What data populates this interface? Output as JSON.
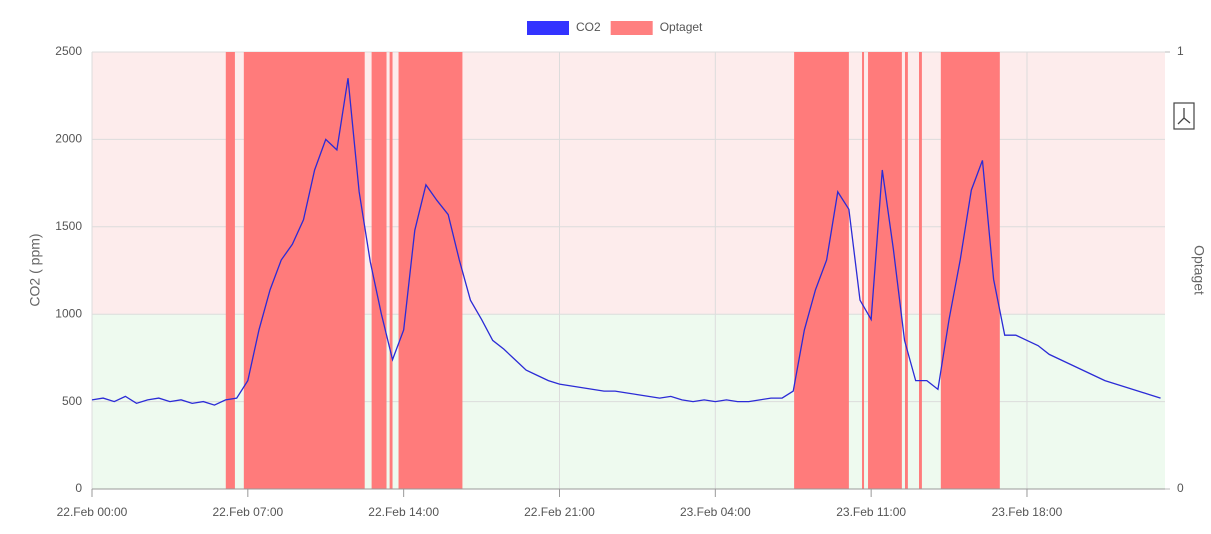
{
  "chart_data": {
    "type": "line",
    "y_label": "CO2 ( ppm)",
    "y2_label": "Optaget",
    "xlim": [
      0,
      48.2
    ],
    "xticks": [
      {
        "value": 0,
        "label": "22.Feb 00:00"
      },
      {
        "value": 7,
        "label": "22.Feb 07:00"
      },
      {
        "value": 14,
        "label": "22.Feb 14:00"
      },
      {
        "value": 21,
        "label": "22.Feb 21:00"
      },
      {
        "value": 28,
        "label": "23.Feb 04:00"
      },
      {
        "value": 35,
        "label": "23.Feb 11:00"
      },
      {
        "value": 42,
        "label": "23.Feb 18:00"
      }
    ],
    "ylim": [
      0,
      2500
    ],
    "yticks": [
      0,
      500,
      1000,
      1500,
      2000,
      2500
    ],
    "y2lim": [
      0,
      1
    ],
    "y2ticks": [
      0,
      1
    ],
    "grid": true,
    "legend": "top",
    "plot_bands": [
      {
        "from": 1000,
        "to": 2500,
        "color": "#fdecec"
      },
      {
        "from": 0,
        "to": 1000,
        "color": "#eefaef"
      }
    ],
    "series": [
      {
        "name": "CO2",
        "color": "#2b2bd6",
        "legend_color": "#3333ff",
        "x": [
          0,
          0.5,
          1,
          1.5,
          2,
          2.5,
          3,
          3.5,
          4,
          4.5,
          5,
          5.5,
          6,
          6.5,
          7,
          7.5,
          8,
          8.5,
          9,
          9.5,
          10,
          10.5,
          11,
          11.5,
          12,
          12.5,
          13,
          13.5,
          14,
          14.5,
          15,
          15.5,
          16,
          16.5,
          17,
          17.5,
          18,
          18.5,
          19,
          19.5,
          20,
          20.5,
          21,
          21.5,
          22,
          22.5,
          23,
          23.5,
          24,
          24.5,
          25,
          25.5,
          26,
          26.5,
          27,
          27.5,
          28,
          28.5,
          29,
          29.5,
          30,
          30.5,
          31,
          31.5,
          32,
          32.5,
          33,
          33.5,
          34,
          34.5,
          35,
          35.5,
          36,
          36.5,
          37,
          37.5,
          38,
          38.5,
          39,
          39.5,
          40,
          40.5,
          41,
          41.5,
          42,
          42.5,
          43,
          43.5,
          44,
          44.5,
          45,
          45.5,
          46,
          46.5,
          47,
          47.5,
          48
        ],
        "values": [
          510,
          520,
          500,
          530,
          490,
          510,
          520,
          500,
          510,
          490,
          500,
          480,
          510,
          520,
          620,
          910,
          1140,
          1310,
          1400,
          1540,
          1825,
          2000,
          1940,
          2350,
          1700,
          1300,
          1000,
          740,
          910,
          1480,
          1740,
          1650,
          1570,
          1310,
          1080,
          970,
          850,
          800,
          740,
          680,
          650,
          620,
          600,
          590,
          580,
          570,
          560,
          560,
          550,
          540,
          530,
          520,
          530,
          510,
          500,
          510,
          500,
          510,
          500,
          500,
          510,
          520,
          520,
          560,
          910,
          1140,
          1310,
          1700,
          1600,
          1080,
          970,
          1825,
          1370,
          850,
          620,
          620,
          570,
          970,
          1310,
          1710,
          1880,
          1200,
          880,
          880,
          850,
          820,
          770,
          740,
          710,
          680,
          650,
          620,
          600,
          580,
          560,
          540,
          520
        ]
      },
      {
        "name": "Optaget",
        "color": "#ff7b7b",
        "legend_color": "#ff8080",
        "axis": "y2",
        "x": [
          6.01,
          6.82,
          12.56,
          13.37,
          13.77,
          31.54,
          34.59,
          34.86,
          36.52,
          37.15,
          38.13
        ],
        "x_end": [
          6.42,
          12.25,
          13.23,
          13.5,
          16.64,
          34.0,
          34.68,
          36.38,
          36.65,
          37.28,
          40.78
        ],
        "values": [
          1,
          1,
          1,
          1,
          1,
          1,
          1,
          1,
          1,
          1,
          1
        ]
      }
    ]
  }
}
